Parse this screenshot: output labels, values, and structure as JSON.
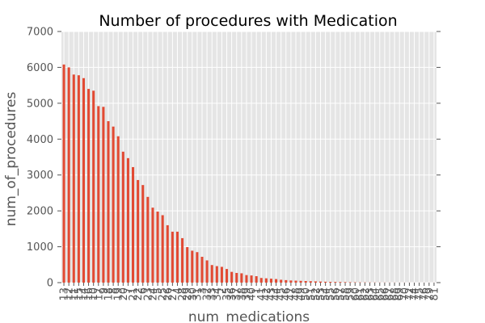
{
  "chart_data": {
    "type": "bar",
    "title": "Number of procedures with Medication",
    "xlabel": "num_medications",
    "ylabel": "num_of_procedures",
    "ylim": [
      0,
      7000
    ],
    "yticks": [
      0,
      1000,
      2000,
      3000,
      4000,
      5000,
      6000,
      7000
    ],
    "grid": true,
    "background": "#e5e5e5",
    "grid_color": "#ffffff",
    "bar_color": "#e24a33",
    "categories": [
      "13",
      "12",
      "11",
      "15",
      "14",
      "16",
      "10",
      "17",
      "9",
      "18",
      "8",
      "19",
      "20",
      "7",
      "21",
      "22",
      "6",
      "23",
      "24",
      "5",
      "25",
      "26",
      "27",
      "4",
      "28",
      "29",
      "30",
      "31",
      "3",
      "32",
      "33",
      "34",
      "2",
      "35",
      "36",
      "37",
      "38",
      "39",
      "40",
      "1",
      "41",
      "42",
      "43",
      "44",
      "45",
      "46",
      "47",
      "48",
      "49",
      "50",
      "51",
      "52",
      "53",
      "54",
      "55",
      "56",
      "57",
      "58",
      "59",
      "60",
      "61",
      "62",
      "63",
      "64",
      "65",
      "66",
      "67",
      "68",
      "69",
      "70",
      "72",
      "74",
      "75",
      "76",
      "79",
      "81"
    ],
    "values": [
      6080,
      6000,
      5800,
      5780,
      5700,
      5400,
      5350,
      4920,
      4900,
      4500,
      4350,
      4080,
      3650,
      3470,
      3220,
      2860,
      2720,
      2390,
      2090,
      1980,
      1880,
      1600,
      1420,
      1420,
      1240,
      990,
      890,
      850,
      720,
      620,
      490,
      460,
      440,
      380,
      300,
      270,
      260,
      210,
      200,
      180,
      130,
      120,
      110,
      100,
      80,
      70,
      60,
      55,
      50,
      45,
      40,
      35,
      30,
      25,
      22,
      20,
      18,
      15,
      12,
      10,
      8,
      7,
      6,
      5,
      4,
      4,
      3,
      3,
      2,
      2,
      2,
      1,
      1,
      1,
      1,
      1
    ]
  }
}
